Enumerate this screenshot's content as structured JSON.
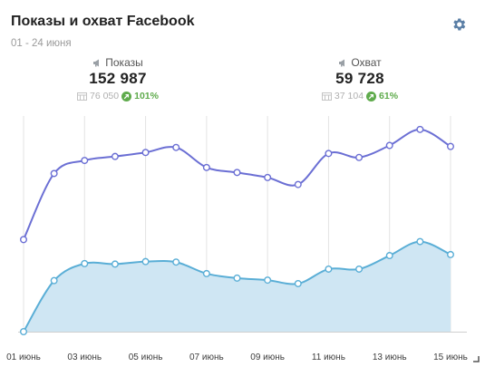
{
  "widget": {
    "title": "Показы и охват Facebook",
    "subtitle": "01 - 24 июня",
    "settings_icon": "gear-icon"
  },
  "metrics": [
    {
      "label": "Показы",
      "icon": "megaphone-icon",
      "value": "152 987",
      "prev_icon": "calendar-icon",
      "prev_value": "76 050",
      "growth_icon": "arrow-up-circle-icon",
      "change": "101%"
    },
    {
      "label": "Охват",
      "icon": "megaphone-icon",
      "value": "59 728",
      "prev_icon": "calendar-icon",
      "prev_value": "37 104",
      "growth_icon": "arrow-up-circle-icon",
      "change": "61%"
    }
  ],
  "colors": {
    "impressions": "#6b6fd4",
    "reach": "#5aaed6",
    "reach_fill": "#cfe6f3",
    "growth": "#5fab4c",
    "grid": "#e3e3e3"
  },
  "chart_data": {
    "type": "line",
    "x": [
      "01 июнь",
      "02 июнь",
      "03 июнь",
      "04 июнь",
      "05 июнь",
      "06 июнь",
      "07 июнь",
      "08 июнь",
      "09 июнь",
      "10 июнь",
      "11 июнь",
      "12 июнь",
      "13 июнь",
      "14 июнь",
      "15 июнь"
    ],
    "tick_labels": [
      "01 июнь",
      "03 июнь",
      "05 июнь",
      "07 июнь",
      "09 июнь",
      "11 июнь",
      "13 июнь",
      "15 июнь"
    ],
    "series": [
      {
        "key": "impressions",
        "values": [
          9200,
          15800,
          17100,
          17500,
          17900,
          18400,
          16400,
          15900,
          15400,
          14700,
          17800,
          17400,
          18600,
          20200,
          18500
        ]
      },
      {
        "key": "reach",
        "values": [
          0,
          5100,
          6800,
          6750,
          7000,
          6950,
          5800,
          5350,
          5150,
          4800,
          6250,
          6250,
          7600,
          9000,
          7700
        ]
      }
    ],
    "ylim": [
      0,
      21000
    ],
    "grid": true,
    "area_fill_series": "reach"
  }
}
